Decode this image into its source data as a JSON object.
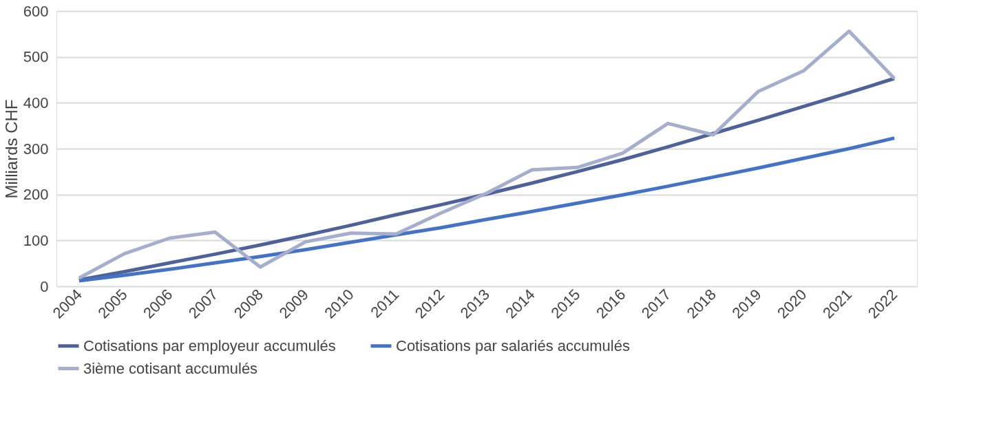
{
  "chart_data": {
    "type": "line",
    "ylabel": "Milliards CHF",
    "categories": [
      "2004",
      "2005",
      "2006",
      "2007",
      "2008",
      "2009",
      "2010",
      "2011",
      "2012",
      "2013",
      "2014",
      "2015",
      "2016",
      "2017",
      "2018",
      "2019",
      "2020",
      "2021",
      "2022"
    ],
    "series": [
      {
        "name": "Cotisations par employeur accumulés",
        "color": "#4f6199",
        "values": [
          14,
          32,
          51,
          70,
          90,
          111,
          133,
          156,
          178,
          201,
          225,
          250,
          276,
          304,
          333,
          362,
          392,
          422,
          453
        ]
      },
      {
        "name": "Cotisations par salariés accumulés",
        "color": "#4472c4",
        "values": [
          12,
          24,
          37,
          51,
          65,
          80,
          96,
          112,
          128,
          146,
          163,
          181,
          199,
          218,
          238,
          258,
          279,
          300,
          323
        ]
      },
      {
        "name": "3ième cotisant accumulés",
        "color": "#a5aecc",
        "values": [
          18,
          71,
          105,
          118,
          42,
          97,
          116,
          114,
          160,
          203,
          254,
          259,
          290,
          355,
          330,
          425,
          470,
          556,
          453
        ]
      }
    ],
    "ylim": [
      0,
      600
    ],
    "yticks": [
      0,
      100,
      200,
      300,
      400,
      500,
      600
    ],
    "grid": "y",
    "legend": "bottom",
    "marker": "none",
    "line_style": "solid"
  }
}
